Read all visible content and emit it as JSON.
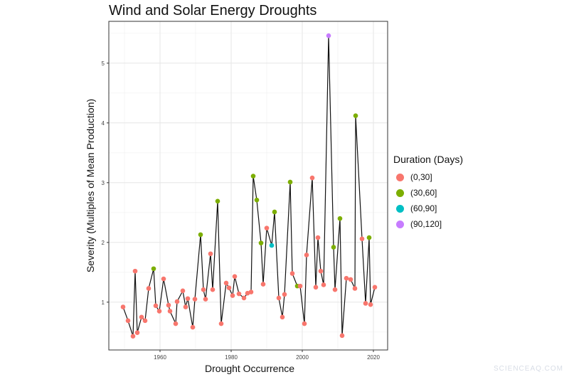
{
  "chart_data": {
    "type": "scatter",
    "title": "Wind and Solar Energy Droughts",
    "xlabel": "Drought Occurrence",
    "ylabel": "Severity (Multiples of Mean Production)",
    "xlim": [
      1945.6,
      2024
    ],
    "ylim": [
      0.2,
      5.7
    ],
    "xticks": [
      1960,
      1980,
      2000,
      2020
    ],
    "yticks": [
      1,
      2,
      3,
      4,
      5
    ],
    "grid": true,
    "connect_points": true,
    "legend": {
      "title": "Duration (Days)",
      "placement": "right",
      "entries": [
        {
          "label": "(0,30]",
          "color": "#F8766D"
        },
        {
          "label": "(30,60]",
          "color": "#7CAE00"
        },
        {
          "label": "(60,90]",
          "color": "#00BFC4"
        },
        {
          "label": "(90,120]",
          "color": "#C77CFF"
        }
      ]
    },
    "x": [
      1949.6,
      1951,
      1952.4,
      1953,
      1953.6,
      1954.8,
      1955.8,
      1956.8,
      1958.2,
      1958.8,
      1959.8,
      1961,
      1962.4,
      1962.8,
      1964.4,
      1964.8,
      1966.4,
      1967.2,
      1967.8,
      1969.2,
      1969.8,
      1971.4,
      1972.2,
      1972.8,
      1974.2,
      1974.8,
      1976.2,
      1977.2,
      1978.6,
      1979.4,
      1980.4,
      1981,
      1982.2,
      1983.6,
      1984.6,
      1985.6,
      1986.2,
      1987.2,
      1988.4,
      1989,
      1990,
      1991.4,
      1992.2,
      1993.4,
      1994.4,
      1995,
      1996.6,
      1997.2,
      1998.6,
      1999.4,
      2000.6,
      2001.2,
      2002.8,
      2003.8,
      2004.4,
      2005.2,
      2006,
      2007.4,
      2008.8,
      2009.2,
      2010.6,
      2011.2,
      2012.4,
      2013.6,
      2014.8,
      2015,
      2016.8,
      2017.8,
      2018.8,
      2019.2,
      2020.4
    ],
    "y": [
      0.92,
      0.69,
      0.43,
      1.52,
      0.49,
      0.75,
      0.69,
      1.23,
      1.56,
      0.94,
      0.85,
      1.39,
      0.95,
      0.85,
      0.64,
      1.01,
      1.19,
      0.92,
      1.06,
      0.58,
      1.05,
      2.13,
      1.21,
      1.05,
      1.81,
      1.21,
      2.69,
      0.64,
      1.32,
      1.24,
      1.11,
      1.43,
      1.14,
      1.07,
      1.15,
      1.17,
      3.11,
      2.71,
      1.99,
      1.3,
      2.24,
      1.95,
      2.51,
      1.07,
      0.75,
      1.13,
      3.01,
      1.48,
      1.27,
      1.27,
      0.64,
      1.79,
      3.08,
      1.25,
      2.08,
      1.52,
      1.29,
      5.46,
      1.92,
      1.21,
      2.4,
      0.44,
      1.4,
      1.38,
      1.23,
      4.12,
      2.06,
      0.98,
      2.08,
      0.96,
      1.25
    ],
    "duration": [
      "(0,30]",
      "(0,30]",
      "(0,30]",
      "(0,30]",
      "(0,30]",
      "(0,30]",
      "(0,30]",
      "(0,30]",
      "(30,60]",
      "(0,30]",
      "(0,30]",
      "(0,30]",
      "(0,30]",
      "(0,30]",
      "(0,30]",
      "(0,30]",
      "(0,30]",
      "(0,30]",
      "(0,30]",
      "(0,30]",
      "(0,30]",
      "(30,60]",
      "(0,30]",
      "(0,30]",
      "(0,30]",
      "(0,30]",
      "(30,60]",
      "(0,30]",
      "(0,30]",
      "(0,30]",
      "(0,30]",
      "(0,30]",
      "(0,30]",
      "(0,30]",
      "(0,30]",
      "(0,30]",
      "(30,60]",
      "(30,60]",
      "(30,60]",
      "(0,30]",
      "(0,30]",
      "(60,90]",
      "(30,60]",
      "(0,30]",
      "(0,30]",
      "(0,30]",
      "(30,60]",
      "(0,30]",
      "(30,60]",
      "(0,30]",
      "(0,30]",
      "(0,30]",
      "(0,30]",
      "(0,30]",
      "(0,30]",
      "(0,30]",
      "(0,30]",
      "(90,120]",
      "(30,60]",
      "(0,30]",
      "(30,60]",
      "(0,30]",
      "(0,30]",
      "(0,30]",
      "(0,30]",
      "(30,60]",
      "(0,30]",
      "(0,30]",
      "(30,60]",
      "(0,30]",
      "(0,30]"
    ]
  },
  "watermark": "SCIENCEAQ.COM"
}
